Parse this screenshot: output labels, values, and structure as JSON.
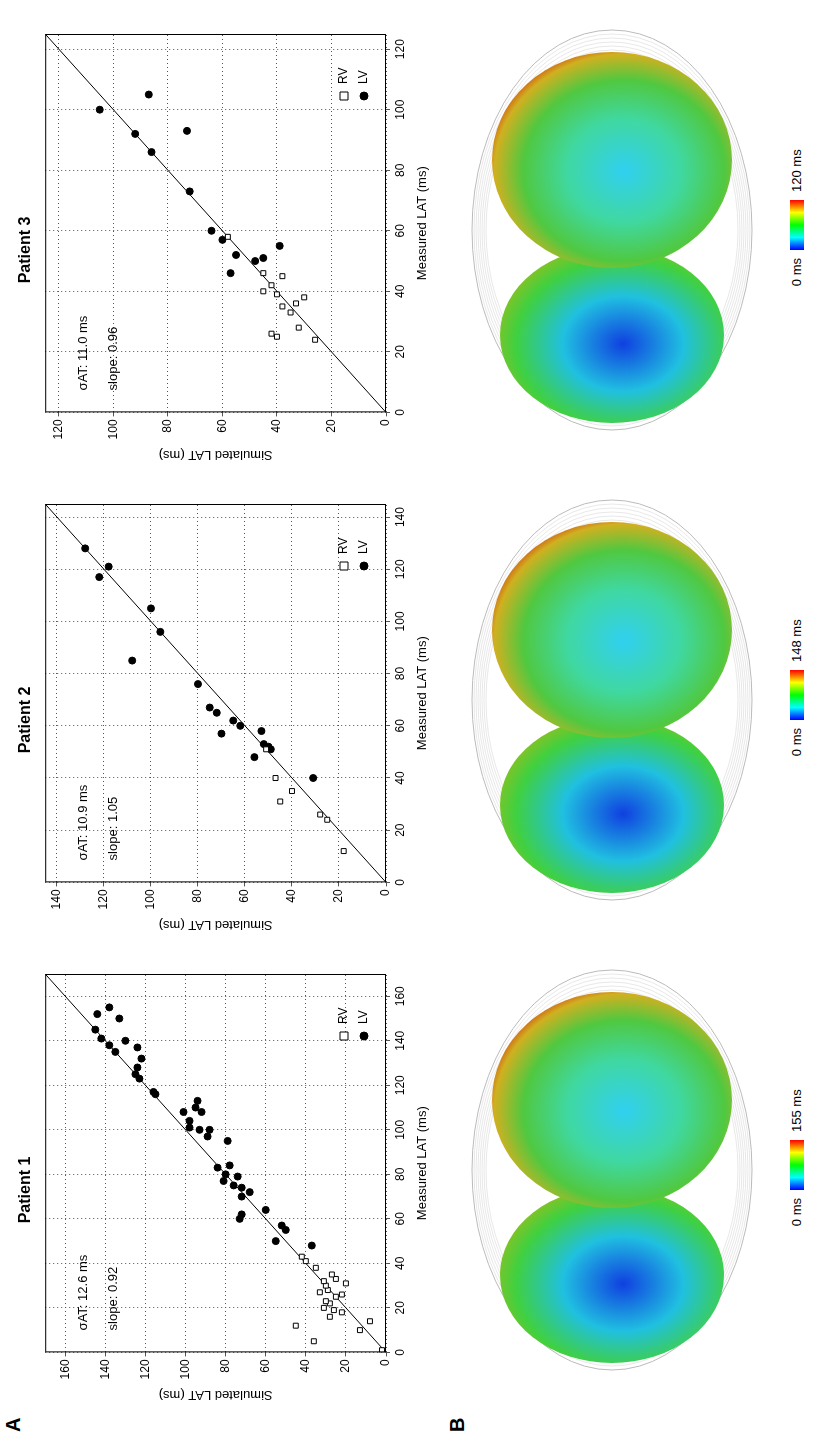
{
  "panel_labels": [
    "A",
    "B"
  ],
  "chart_data": [
    {
      "type": "scatter",
      "title": "Patient 1",
      "x_label": "Measured LAT (ms)",
      "y_label": "Simulated LAT (ms)",
      "xlim": [
        0,
        170
      ],
      "ylim": [
        0,
        170
      ],
      "xticks": [
        0,
        20,
        40,
        60,
        80,
        100,
        120,
        140,
        160
      ],
      "yticks": [
        0,
        20,
        40,
        60,
        80,
        100,
        120,
        140,
        160
      ],
      "grid": true,
      "legend": "lower right",
      "annotations": [
        "σAT: 12.6 ms",
        "slope: 0.92"
      ],
      "reference_line": {
        "x": [
          0,
          170
        ],
        "values": [
          0,
          170
        ]
      },
      "series": [
        {
          "name": "RV",
          "marker": "open_square",
          "color": "#000000",
          "x": [
            1,
            5,
            10,
            12,
            14,
            16,
            18,
            19,
            20,
            22,
            23,
            25,
            26,
            27,
            28,
            30,
            31,
            32,
            33,
            35,
            38,
            41,
            43
          ],
          "values": [
            2,
            36,
            13,
            45,
            8,
            28,
            22,
            26,
            31,
            28,
            30,
            25,
            22,
            33,
            29,
            30,
            20,
            31,
            25,
            27,
            35,
            40,
            42
          ]
        },
        {
          "name": "LV",
          "marker": "circle",
          "color": "#000000",
          "x": [
            135,
            138,
            141,
            145,
            150,
            152,
            155,
            140,
            128,
            125,
            123,
            132,
            137,
            116,
            117,
            100,
            97,
            100,
            101,
            104,
            108,
            110,
            108,
            113,
            95,
            83,
            80,
            84,
            77,
            79,
            74,
            75,
            70,
            72,
            64,
            60,
            62,
            55,
            57,
            50,
            48
          ],
          "values": [
            135,
            138,
            142,
            145,
            133,
            144,
            138,
            130,
            124,
            125,
            123,
            122,
            124,
            115,
            116,
            93,
            89,
            88,
            98,
            98,
            101,
            95,
            92,
            94,
            79,
            84,
            80,
            78,
            81,
            74,
            72,
            76,
            72,
            68,
            60,
            73,
            72,
            50,
            52,
            55,
            37
          ]
        }
      ]
    },
    {
      "type": "scatter",
      "title": "Patient 2",
      "x_label": "Measured LAT (ms)",
      "y_label": "Simulated LAT (ms)",
      "xlim": [
        0,
        145
      ],
      "ylim": [
        0,
        145
      ],
      "xticks": [
        0,
        20,
        40,
        60,
        80,
        100,
        120,
        140
      ],
      "yticks": [
        0,
        20,
        40,
        60,
        80,
        100,
        120,
        140
      ],
      "grid": true,
      "legend": "lower right",
      "annotations": [
        "σAT: 10.9 ms",
        "slope: 1.05"
      ],
      "reference_line": {
        "x": [
          0,
          145
        ],
        "values": [
          0,
          145
        ]
      },
      "series": [
        {
          "name": "RV",
          "marker": "open_square",
          "color": "#000000",
          "x": [
            12,
            24,
            26,
            31,
            35,
            40,
            51
          ],
          "values": [
            18,
            25,
            28,
            45,
            40,
            47,
            51
          ]
        },
        {
          "name": "LV",
          "marker": "circle",
          "color": "#000000",
          "x": [
            128,
            121,
            117,
            105,
            96,
            85,
            76,
            67,
            65,
            62,
            60,
            58,
            57,
            53,
            52,
            51,
            48,
            40
          ],
          "values": [
            128,
            118,
            122,
            100,
            96,
            108,
            80,
            75,
            72,
            65,
            62,
            53,
            70,
            52,
            50,
            49,
            56,
            31
          ]
        }
      ]
    },
    {
      "type": "scatter",
      "title": "Patient 3",
      "x_label": "Measured LAT (ms)",
      "y_label": "Simulated LAT (ms)",
      "xlim": [
        0,
        125
      ],
      "ylim": [
        0,
        125
      ],
      "xticks": [
        0,
        20,
        40,
        60,
        80,
        100,
        120
      ],
      "yticks": [
        0,
        20,
        40,
        60,
        80,
        100,
        120
      ],
      "grid": true,
      "legend": "lower right",
      "annotations": [
        "σAT: 11.0 ms",
        "slope: 0.96"
      ],
      "reference_line": {
        "x": [
          0,
          125
        ],
        "values": [
          0,
          125
        ]
      },
      "series": [
        {
          "name": "RV",
          "marker": "open_square",
          "color": "#000000",
          "x": [
            24,
            25,
            26,
            28,
            33,
            35,
            36,
            38,
            39,
            40,
            42,
            45,
            46,
            58
          ],
          "values": [
            26,
            40,
            42,
            32,
            35,
            38,
            33,
            30,
            40,
            45,
            42,
            38,
            45,
            58
          ]
        },
        {
          "name": "LV",
          "marker": "circle",
          "color": "#000000",
          "x": [
            100,
            105,
            92,
            93,
            86,
            73,
            57,
            60,
            52,
            46,
            50,
            51,
            55
          ],
          "values": [
            105,
            87,
            92,
            73,
            86,
            72,
            60,
            64,
            55,
            57,
            48,
            45,
            39
          ]
        }
      ]
    }
  ],
  "colorbars": [
    {
      "range": [
        0,
        155
      ],
      "ticks": [
        {
          "value": 0,
          "label": "0 ms"
        },
        {
          "value": 155,
          "label": "155 ms"
        }
      ]
    },
    {
      "range": [
        0,
        148
      ],
      "ticks": [
        {
          "value": 0,
          "label": "0 ms"
        },
        {
          "value": 148,
          "label": "148 ms"
        }
      ]
    },
    {
      "range": [
        0,
        120
      ],
      "ticks": [
        {
          "value": 0,
          "label": "0 ms"
        },
        {
          "value": 120,
          "label": "120 ms"
        }
      ]
    }
  ]
}
